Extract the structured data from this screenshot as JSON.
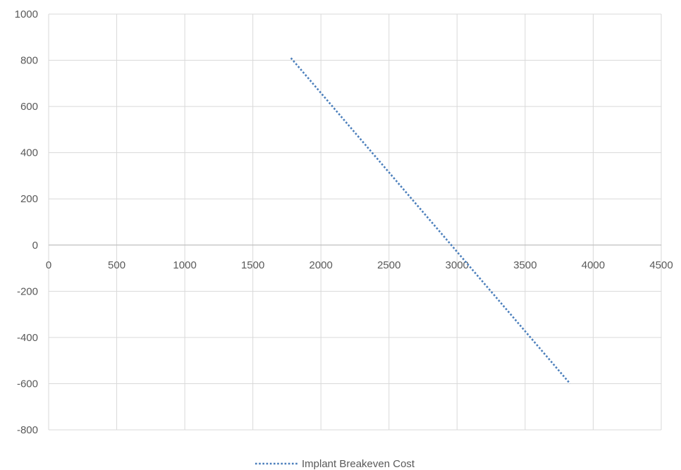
{
  "chart_data": {
    "type": "scatter",
    "title": "",
    "xlabel": "",
    "ylabel": "",
    "xlim": [
      0,
      4500
    ],
    "ylim": [
      -800,
      1000
    ],
    "x_ticks": [
      0,
      500,
      1000,
      1500,
      2000,
      2500,
      3000,
      3500,
      4000,
      4500
    ],
    "y_ticks": [
      1000,
      800,
      600,
      400,
      200,
      0,
      -200,
      -400,
      -600,
      -800
    ],
    "grid": true,
    "legend_position": "bottom",
    "series": [
      {
        "name": "Implant Breakeven Cost",
        "line_style": "dotted",
        "color": "#4a7ebb",
        "points": [
          {
            "x": 1780,
            "y": 810
          },
          {
            "x": 3830,
            "y": -600
          }
        ]
      }
    ]
  }
}
